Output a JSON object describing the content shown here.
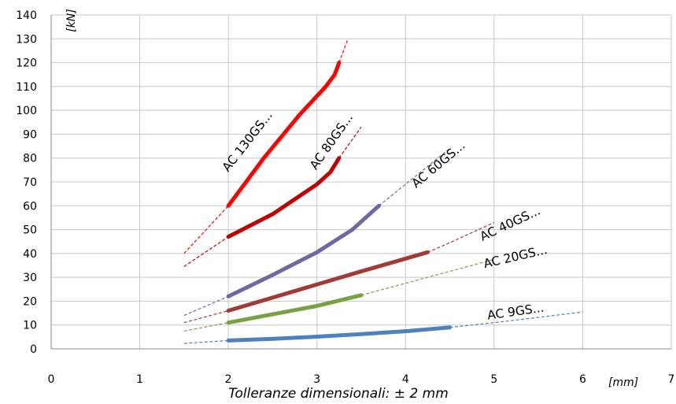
{
  "chart_data": {
    "type": "line",
    "caption": "Tolleranze dimensionali: ± 2 mm",
    "xlabel": "[mm]",
    "ylabel": "[kN]",
    "xlim": [
      0,
      7
    ],
    "ylim": [
      0,
      140
    ],
    "x_ticks": [
      "0",
      "1",
      "2",
      "3",
      "4",
      "5",
      "6",
      "7"
    ],
    "y_ticks": [
      "0",
      "10",
      "20",
      "30",
      "40",
      "50",
      "60",
      "70",
      "80",
      "90",
      "100",
      "110",
      "120",
      "130",
      "140"
    ],
    "grid": true,
    "legend": "labels on lines",
    "series": [
      {
        "name": "AC 9GS...",
        "color": "#4f81bd",
        "solid": [
          [
            2,
            3.5
          ],
          [
            2.5,
            4.2
          ],
          [
            3,
            5.1
          ],
          [
            3.5,
            6.2
          ],
          [
            4,
            7.4
          ],
          [
            4.5,
            9
          ]
        ],
        "extrapolated": [
          [
            1.5,
            2.3
          ],
          [
            2,
            3.5
          ],
          [
            4.5,
            9
          ],
          [
            5,
            11
          ],
          [
            5.5,
            13.2
          ],
          [
            6,
            15.5
          ]
        ],
        "label_pos": [
          5.25,
          14
        ]
      },
      {
        "name": "AC 20GS...",
        "color": "#77a144",
        "solid": [
          [
            2,
            11
          ],
          [
            2.5,
            14.5
          ],
          [
            3,
            18
          ],
          [
            3.5,
            22.5
          ]
        ],
        "extrapolated": [
          [
            1.5,
            7.5
          ],
          [
            2,
            11
          ],
          [
            3.5,
            22.5
          ],
          [
            4,
            27.5
          ],
          [
            4.5,
            32.5
          ],
          [
            5,
            37.5
          ]
        ],
        "label_pos": [
          5.25,
          37
        ]
      },
      {
        "name": "AC 40GS...",
        "color": "#a33a36",
        "solid": [
          [
            2,
            16
          ],
          [
            2.5,
            21.5
          ],
          [
            3,
            27
          ],
          [
            3.5,
            32.5
          ],
          [
            4.25,
            40.5
          ]
        ],
        "extrapolated": [
          [
            1.5,
            11
          ],
          [
            2,
            16
          ],
          [
            4.25,
            40.5
          ],
          [
            4.5,
            44.5
          ],
          [
            5,
            53
          ]
        ],
        "label_pos": [
          5.2,
          51
        ]
      },
      {
        "name": "AC 60GS...",
        "color": "#7266a5",
        "solid": [
          [
            2,
            22
          ],
          [
            2.5,
            31
          ],
          [
            3,
            40.5
          ],
          [
            3.4,
            50
          ],
          [
            3.7,
            60
          ]
        ],
        "extrapolated": [
          [
            1.5,
            14
          ],
          [
            2,
            22
          ],
          [
            3.7,
            60
          ],
          [
            4.1,
            72
          ],
          [
            4.5,
            84
          ]
        ],
        "label_pos": [
          4.4,
          76
        ]
      },
      {
        "name": "AC 80GS...",
        "color": "#c00000",
        "solid": [
          [
            2,
            47
          ],
          [
            2.5,
            56.5
          ],
          [
            3,
            69
          ],
          [
            3.15,
            74
          ],
          [
            3.25,
            80
          ]
        ],
        "extrapolated": [
          [
            1.5,
            34.5
          ],
          [
            2,
            47
          ],
          [
            3.25,
            80
          ],
          [
            3.5,
            93
          ]
        ],
        "label_pos": [
          3.2,
          86
        ]
      },
      {
        "name": "AC 130GS...",
        "color": "#ff0000",
        "solid": [
          [
            2,
            60
          ],
          [
            2.4,
            80
          ],
          [
            2.8,
            98
          ],
          [
            3.1,
            110
          ],
          [
            3.2,
            115
          ],
          [
            3.25,
            120
          ]
        ],
        "extrapolated": [
          [
            1.5,
            40
          ],
          [
            2,
            60
          ],
          [
            3.25,
            120
          ],
          [
            3.35,
            130
          ]
        ],
        "label_pos": [
          2.25,
          86
        ]
      }
    ]
  }
}
